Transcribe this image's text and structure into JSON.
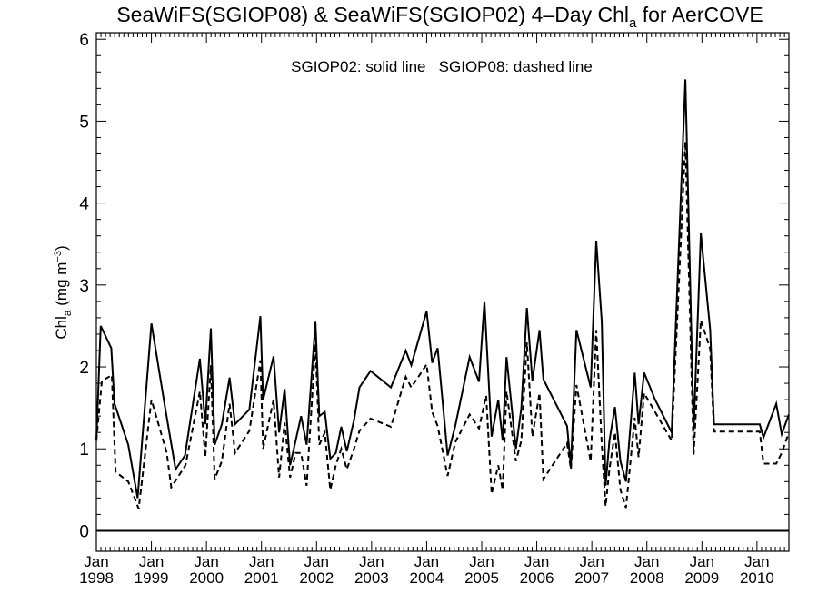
{
  "chart_data": {
    "type": "line",
    "title": {
      "prefix": "SeaWiFS(SGIOP08) & SeaWiFS(SGIOP02) 4–Day Chl",
      "subscript": "a",
      "suffix": " for AerCOVE"
    },
    "annotation": "SGIOP02: solid line   SGIOP08: dashed line",
    "ylabel": {
      "prefix": "Chl",
      "subscript": "a",
      "middle": " (mg m",
      "superscript": "−3",
      "suffix": ")"
    },
    "xlim": [
      1998.0,
      2010.58
    ],
    "ylim": [
      -0.25,
      6.08
    ],
    "y_ticks": [
      0,
      1,
      2,
      3,
      4,
      5,
      6
    ],
    "x_ticks": [
      {
        "x": 1998,
        "month": "Jan",
        "year": "1998"
      },
      {
        "x": 1999,
        "month": "Jan",
        "year": "1999"
      },
      {
        "x": 2000,
        "month": "Jan",
        "year": "2000"
      },
      {
        "x": 2001,
        "month": "Jan",
        "year": "2001"
      },
      {
        "x": 2002,
        "month": "Jan",
        "year": "2002"
      },
      {
        "x": 2003,
        "month": "Jan",
        "year": "2003"
      },
      {
        "x": 2004,
        "month": "Jan",
        "year": "2004"
      },
      {
        "x": 2005,
        "month": "Jan",
        "year": "2005"
      },
      {
        "x": 2006,
        "month": "Jan",
        "year": "2006"
      },
      {
        "x": 2007,
        "month": "Jan",
        "year": "2007"
      },
      {
        "x": 2008,
        "month": "Jan",
        "year": "2008"
      },
      {
        "x": 2009,
        "month": "Jan",
        "year": "2009"
      },
      {
        "x": 2010,
        "month": "Jan",
        "year": "2010"
      }
    ],
    "zero_line": 0,
    "series": [
      {
        "name": "SGIOP02",
        "style": "solid",
        "color": "#000000",
        "points": [
          [
            1998.0,
            1.1
          ],
          [
            1998.08,
            2.5
          ],
          [
            1998.27,
            2.23
          ],
          [
            1998.33,
            1.55
          ],
          [
            1998.58,
            1.05
          ],
          [
            1998.75,
            0.4
          ],
          [
            1999.0,
            2.53
          ],
          [
            1999.25,
            1.5
          ],
          [
            1999.44,
            0.75
          ],
          [
            1999.61,
            0.92
          ],
          [
            1999.88,
            2.1
          ],
          [
            1999.98,
            1.3
          ],
          [
            2000.08,
            2.47
          ],
          [
            2000.15,
            1.05
          ],
          [
            2000.28,
            1.3
          ],
          [
            2000.42,
            1.87
          ],
          [
            2000.52,
            1.3
          ],
          [
            2000.78,
            1.48
          ],
          [
            2000.98,
            2.62
          ],
          [
            2001.03,
            1.6
          ],
          [
            2001.22,
            2.13
          ],
          [
            2001.32,
            1.2
          ],
          [
            2001.42,
            1.73
          ],
          [
            2001.52,
            0.8
          ],
          [
            2001.62,
            1.1
          ],
          [
            2001.72,
            1.4
          ],
          [
            2001.82,
            1.05
          ],
          [
            2001.98,
            2.55
          ],
          [
            2002.05,
            1.4
          ],
          [
            2002.15,
            1.45
          ],
          [
            2002.25,
            0.88
          ],
          [
            2002.35,
            0.95
          ],
          [
            2002.45,
            1.27
          ],
          [
            2002.55,
            0.97
          ],
          [
            2002.68,
            1.35
          ],
          [
            2002.78,
            1.75
          ],
          [
            2002.98,
            1.95
          ],
          [
            2003.35,
            1.75
          ],
          [
            2003.62,
            2.2
          ],
          [
            2003.72,
            2.02
          ],
          [
            2004.0,
            2.68
          ],
          [
            2004.1,
            2.05
          ],
          [
            2004.2,
            2.23
          ],
          [
            2004.38,
            0.92
          ],
          [
            2004.52,
            1.28
          ],
          [
            2004.78,
            2.12
          ],
          [
            2004.95,
            1.82
          ],
          [
            2005.05,
            2.8
          ],
          [
            2005.18,
            1.15
          ],
          [
            2005.3,
            1.6
          ],
          [
            2005.38,
            1.1
          ],
          [
            2005.45,
            2.12
          ],
          [
            2005.62,
            1.0
          ],
          [
            2005.72,
            1.5
          ],
          [
            2005.82,
            2.72
          ],
          [
            2005.92,
            1.83
          ],
          [
            2006.05,
            2.45
          ],
          [
            2006.12,
            1.85
          ],
          [
            2006.55,
            1.28
          ],
          [
            2006.62,
            0.78
          ],
          [
            2006.72,
            2.45
          ],
          [
            2006.98,
            1.75
          ],
          [
            2007.08,
            3.54
          ],
          [
            2007.18,
            2.55
          ],
          [
            2007.25,
            0.55
          ],
          [
            2007.32,
            1.1
          ],
          [
            2007.42,
            1.51
          ],
          [
            2007.52,
            0.85
          ],
          [
            2007.62,
            0.6
          ],
          [
            2007.78,
            1.93
          ],
          [
            2007.85,
            1.3
          ],
          [
            2007.95,
            1.93
          ],
          [
            2008.15,
            1.6
          ],
          [
            2008.45,
            1.2
          ],
          [
            2008.7,
            5.51
          ],
          [
            2008.85,
            1.22
          ],
          [
            2008.98,
            3.63
          ],
          [
            2009.15,
            2.45
          ],
          [
            2009.22,
            1.3
          ],
          [
            2009.42,
            1.3
          ],
          [
            2010.05,
            1.3
          ],
          [
            2010.12,
            1.14
          ],
          [
            2010.35,
            1.55
          ],
          [
            2010.45,
            1.18
          ],
          [
            2010.58,
            1.42
          ]
        ]
      },
      {
        "name": "SGIOP08",
        "style": "dashed",
        "color": "#000000",
        "points": [
          [
            1998.0,
            1.1
          ],
          [
            1998.1,
            1.83
          ],
          [
            1998.28,
            1.9
          ],
          [
            1998.35,
            0.72
          ],
          [
            1998.58,
            0.6
          ],
          [
            1998.77,
            0.27
          ],
          [
            1999.0,
            1.6
          ],
          [
            1999.28,
            0.95
          ],
          [
            1999.36,
            0.53
          ],
          [
            1999.62,
            0.8
          ],
          [
            1999.88,
            1.7
          ],
          [
            1999.98,
            0.9
          ],
          [
            2000.08,
            2.02
          ],
          [
            2000.15,
            0.63
          ],
          [
            2000.28,
            0.85
          ],
          [
            2000.42,
            1.55
          ],
          [
            2000.52,
            0.95
          ],
          [
            2000.78,
            1.22
          ],
          [
            2000.98,
            2.08
          ],
          [
            2001.03,
            1.0
          ],
          [
            2001.22,
            1.6
          ],
          [
            2001.32,
            0.65
          ],
          [
            2001.42,
            1.32
          ],
          [
            2001.52,
            0.65
          ],
          [
            2001.62,
            0.95
          ],
          [
            2001.72,
            0.95
          ],
          [
            2001.82,
            0.55
          ],
          [
            2001.98,
            2.28
          ],
          [
            2002.05,
            1.05
          ],
          [
            2002.15,
            1.2
          ],
          [
            2002.25,
            0.5
          ],
          [
            2002.35,
            0.8
          ],
          [
            2002.45,
            1.0
          ],
          [
            2002.55,
            0.75
          ],
          [
            2002.68,
            1.0
          ],
          [
            2002.78,
            1.22
          ],
          [
            2002.98,
            1.37
          ],
          [
            2003.35,
            1.27
          ],
          [
            2003.62,
            1.88
          ],
          [
            2003.72,
            1.75
          ],
          [
            2004.0,
            2.03
          ],
          [
            2004.1,
            1.45
          ],
          [
            2004.2,
            1.28
          ],
          [
            2004.38,
            0.67
          ],
          [
            2004.52,
            1.08
          ],
          [
            2004.78,
            1.42
          ],
          [
            2004.95,
            1.25
          ],
          [
            2005.08,
            1.65
          ],
          [
            2005.18,
            0.45
          ],
          [
            2005.3,
            0.8
          ],
          [
            2005.38,
            0.5
          ],
          [
            2005.45,
            1.7
          ],
          [
            2005.62,
            0.85
          ],
          [
            2005.72,
            1.1
          ],
          [
            2005.82,
            2.3
          ],
          [
            2005.92,
            1.15
          ],
          [
            2006.05,
            1.68
          ],
          [
            2006.12,
            0.63
          ],
          [
            2006.55,
            1.07
          ],
          [
            2006.62,
            0.75
          ],
          [
            2006.72,
            1.78
          ],
          [
            2006.98,
            0.85
          ],
          [
            2007.08,
            2.45
          ],
          [
            2007.18,
            1.05
          ],
          [
            2007.25,
            0.3
          ],
          [
            2007.32,
            0.75
          ],
          [
            2007.42,
            1.2
          ],
          [
            2007.52,
            0.5
          ],
          [
            2007.62,
            0.28
          ],
          [
            2007.78,
            1.38
          ],
          [
            2007.85,
            0.9
          ],
          [
            2007.95,
            1.68
          ],
          [
            2008.15,
            1.45
          ],
          [
            2008.45,
            1.1
          ],
          [
            2008.7,
            4.75
          ],
          [
            2008.85,
            0.93
          ],
          [
            2008.98,
            2.57
          ],
          [
            2009.15,
            2.22
          ],
          [
            2009.22,
            1.21
          ],
          [
            2009.42,
            1.21
          ],
          [
            2010.05,
            1.21
          ],
          [
            2010.12,
            0.82
          ],
          [
            2010.35,
            0.82
          ],
          [
            2010.45,
            0.95
          ],
          [
            2010.58,
            1.2
          ]
        ]
      }
    ]
  }
}
